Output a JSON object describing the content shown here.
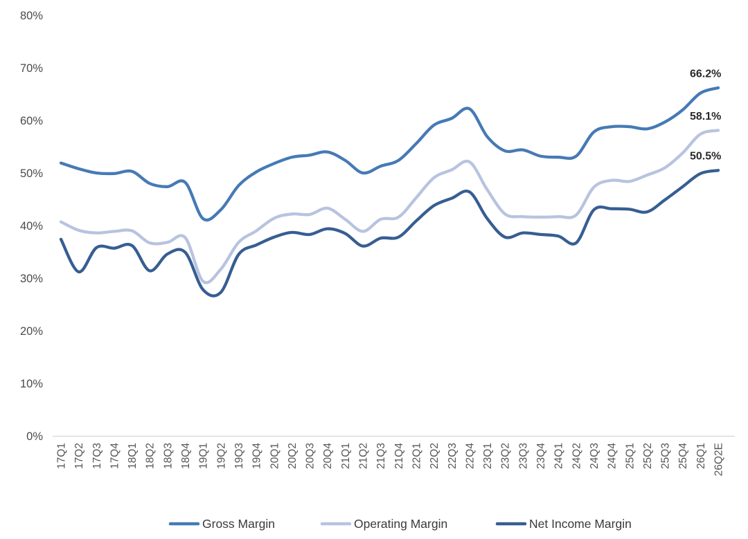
{
  "chart_data": {
    "type": "line",
    "title": "",
    "smoothed": true,
    "grid": false,
    "legend_position": "bottom",
    "ylim": [
      0,
      80
    ],
    "y_ticks": [
      {
        "value": 0,
        "label": "0%"
      },
      {
        "value": 10,
        "label": "10%"
      },
      {
        "value": 20,
        "label": "20%"
      },
      {
        "value": 30,
        "label": "30%"
      },
      {
        "value": 40,
        "label": "40%"
      },
      {
        "value": 50,
        "label": "50%"
      },
      {
        "value": 60,
        "label": "60%"
      },
      {
        "value": 70,
        "label": "70%"
      },
      {
        "value": 80,
        "label": "80%"
      }
    ],
    "categories": [
      "17Q1",
      "17Q2",
      "17Q3",
      "17Q4",
      "18Q1",
      "18Q2",
      "18Q3",
      "18Q4",
      "19Q1",
      "19Q2",
      "19Q3",
      "19Q4",
      "20Q1",
      "20Q2",
      "20Q3",
      "20Q4",
      "21Q1",
      "21Q2",
      "21Q3",
      "21Q4",
      "22Q1",
      "22Q2",
      "22Q3",
      "22Q4",
      "23Q1",
      "23Q2",
      "23Q3",
      "23Q4",
      "24Q1",
      "24Q2",
      "24Q3",
      "24Q4",
      "25Q1",
      "25Q2",
      "25Q3",
      "25Q4",
      "26Q1",
      "26Q2E"
    ],
    "series": [
      {
        "name": "Gross Margin",
        "color": "#467ab5",
        "end_label": "66.2%",
        "values": [
          51.9,
          50.8,
          50.0,
          49.9,
          50.3,
          48.0,
          47.4,
          48.2,
          41.3,
          43.0,
          47.6,
          50.2,
          51.8,
          53.0,
          53.4,
          54.0,
          52.4,
          50.0,
          51.3,
          52.4,
          55.6,
          59.1,
          60.4,
          62.2,
          56.9,
          54.2,
          54.4,
          53.2,
          53.0,
          53.2,
          57.8,
          58.8,
          58.8,
          58.4,
          59.7,
          62.0,
          65.2,
          66.2
        ]
      },
      {
        "name": "Operating Margin",
        "color": "#b8c3e0",
        "end_label": "58.1%",
        "values": [
          40.7,
          39.1,
          38.6,
          38.9,
          39.0,
          36.7,
          36.8,
          37.7,
          29.4,
          31.7,
          36.8,
          39.0,
          41.4,
          42.2,
          42.1,
          43.3,
          41.2,
          38.9,
          41.2,
          41.6,
          45.3,
          49.1,
          50.6,
          52.1,
          46.8,
          42.2,
          41.7,
          41.6,
          41.7,
          42.0,
          47.3,
          48.6,
          48.4,
          49.6,
          51.0,
          53.8,
          57.4,
          58.1
        ]
      },
      {
        "name": "Net Income Margin",
        "color": "#365e92",
        "end_label": "50.5%",
        "values": [
          37.4,
          31.2,
          35.8,
          35.7,
          36.2,
          31.4,
          34.6,
          34.9,
          27.8,
          27.3,
          34.5,
          36.3,
          37.8,
          38.7,
          38.3,
          39.4,
          38.5,
          36.1,
          37.6,
          37.8,
          40.9,
          43.8,
          45.2,
          46.4,
          41.3,
          37.8,
          38.6,
          38.3,
          38.0,
          36.7,
          43.0,
          43.2,
          43.1,
          42.6,
          44.9,
          47.4,
          49.9,
          50.5
        ]
      }
    ],
    "axis_line_color": "#d9d9e3"
  }
}
